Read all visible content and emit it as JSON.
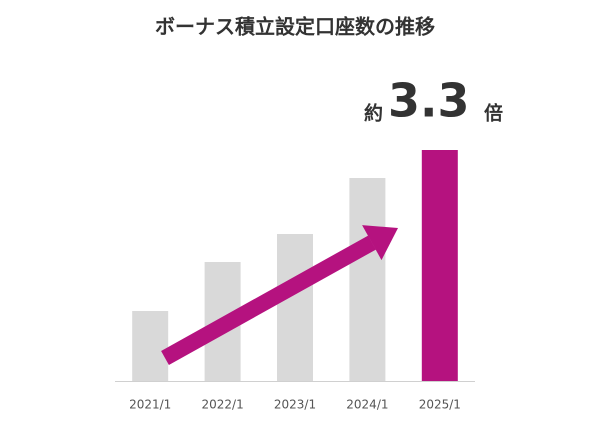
{
  "chart_data": {
    "type": "bar",
    "title": "ボーナス積立設定口座数の推移",
    "categories": [
      "2021/1",
      "2022/1",
      "2023/1",
      "2024/1",
      "2025/1"
    ],
    "values": [
      1,
      1.7,
      2.1,
      2.9,
      3.3
    ],
    "colors": [
      "#d9d9d9",
      "#d9d9d9",
      "#d9d9d9",
      "#d9d9d9",
      "#b5127f"
    ],
    "ylim": [
      0,
      3.3
    ],
    "annotation": {
      "prefix": "約",
      "value": "3.3",
      "suffix": "倍"
    }
  }
}
